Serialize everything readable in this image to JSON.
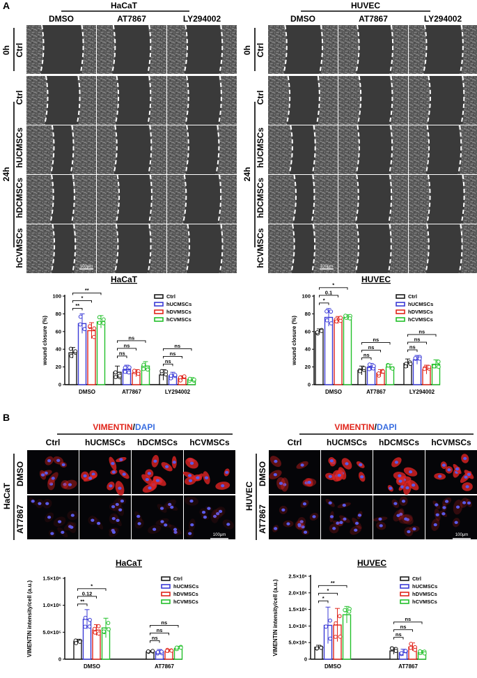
{
  "panel_labels": {
    "a": "A",
    "b": "B"
  },
  "scale_bars": {
    "wound": "100μm",
    "vim": "100μm"
  },
  "colors": {
    "Ctrl": "#1a1a1a",
    "hUCMSCs": "#3a3ad6",
    "hDVMSCs": "#e0241a",
    "hCVMSCs": "#22c02a",
    "vimentin": "#e0241a",
    "dapi": "#3a6ee0"
  },
  "section_a": {
    "left": {
      "title": "HaCaT",
      "columns": [
        "DMSO",
        "AT7867",
        "LY294002"
      ],
      "rows": [
        "Ctrl",
        "Ctrl",
        "hUCMSCs",
        "hDCMSCs",
        "hCVMSCs"
      ]
    },
    "right": {
      "title": "HUVEC",
      "columns": [
        "DMSO",
        "AT7867",
        "LY294002"
      ],
      "rows": [
        "Ctrl",
        "Ctrl",
        "hUCMSCs",
        "hDCMSCs",
        "hCVMSCs"
      ]
    },
    "time_labels": [
      "0h",
      "24h"
    ]
  },
  "section_b": {
    "stain": {
      "marker": "VIMENTIN",
      "sep": "/",
      "nuclear": "DAPI"
    },
    "columns": [
      "Ctrl",
      "hUCMSCs",
      "hDCMSCs",
      "hCVMSCs"
    ],
    "rows": [
      "DMSO",
      "AT7867"
    ],
    "cell_lines": [
      "HaCaT",
      "HUVEC"
    ]
  },
  "chart_data": [
    {
      "type": "bar",
      "title": "HaCaT",
      "ylabel": "wound closure (%)",
      "ylim": [
        0,
        100
      ],
      "yticks": [
        "0",
        "20",
        "40",
        "60",
        "80",
        "100"
      ],
      "categories": [
        "DMSO",
        "AT7867",
        "LY294002"
      ],
      "series": [
        {
          "name": "Ctrl",
          "values": [
            36,
            14,
            11
          ],
          "sd": [
            6,
            7,
            6
          ]
        },
        {
          "name": "hUCMSCs",
          "values": [
            69,
            17,
            10
          ],
          "sd": [
            11,
            5,
            4
          ]
        },
        {
          "name": "hDVMSCs",
          "values": [
            61,
            13,
            7
          ],
          "sd": [
            9,
            4,
            3
          ]
        },
        {
          "name": "hCVMSCs",
          "values": [
            71,
            21,
            6
          ],
          "sd": [
            7,
            5,
            2
          ]
        }
      ],
      "significance": [
        {
          "group": "DMSO",
          "from": 0,
          "to": 1,
          "label": "**"
        },
        {
          "group": "DMSO",
          "from": 0,
          "to": 2,
          "label": "*"
        },
        {
          "group": "DMSO",
          "from": 0,
          "to": 3,
          "label": "**"
        },
        {
          "group": "AT7867",
          "from": 0,
          "to": 1,
          "label": "ns"
        },
        {
          "group": "AT7867",
          "from": 0,
          "to": 2,
          "label": "ns"
        },
        {
          "group": "AT7867",
          "from": 0,
          "to": 3,
          "label": "ns"
        },
        {
          "group": "LY294002",
          "from": 0,
          "to": 1,
          "label": "ns"
        },
        {
          "group": "LY294002",
          "from": 0,
          "to": 2,
          "label": "ns"
        },
        {
          "group": "LY294002",
          "from": 0,
          "to": 3,
          "label": "ns"
        }
      ],
      "legend": "top-right"
    },
    {
      "type": "bar",
      "title": "HUVEC",
      "ylabel": "wound closure (%)",
      "ylim": [
        0,
        100
      ],
      "yticks": [
        "0",
        "20",
        "40",
        "60",
        "80",
        "100"
      ],
      "categories": [
        "DMSO",
        "AT7867",
        "LY294002"
      ],
      "series": [
        {
          "name": "Ctrl",
          "values": [
            60,
            16,
            24
          ],
          "sd": [
            3,
            5,
            5
          ]
        },
        {
          "name": "hUCMSCs",
          "values": [
            76,
            20,
            28
          ],
          "sd": [
            10,
            4,
            5
          ]
        },
        {
          "name": "hDVMSCs",
          "values": [
            73,
            13,
            17
          ],
          "sd": [
            4,
            4,
            5
          ]
        },
        {
          "name": "hCVMSCs",
          "values": [
            76,
            20,
            23
          ],
          "sd": [
            3,
            3,
            5
          ]
        }
      ],
      "significance": [
        {
          "group": "DMSO",
          "from": 0,
          "to": 1,
          "label": "*"
        },
        {
          "group": "DMSO",
          "from": 0,
          "to": 2,
          "label": "0.1"
        },
        {
          "group": "DMSO",
          "from": 0,
          "to": 3,
          "label": "*"
        },
        {
          "group": "AT7867",
          "from": 0,
          "to": 1,
          "label": "ns"
        },
        {
          "group": "AT7867",
          "from": 0,
          "to": 2,
          "label": "ns"
        },
        {
          "group": "AT7867",
          "from": 0,
          "to": 3,
          "label": "ns"
        },
        {
          "group": "LY294002",
          "from": 0,
          "to": 1,
          "label": "ns"
        },
        {
          "group": "LY294002",
          "from": 0,
          "to": 2,
          "label": "ns"
        },
        {
          "group": "LY294002",
          "from": 0,
          "to": 3,
          "label": "ns"
        }
      ],
      "legend": "top-right"
    },
    {
      "type": "bar",
      "title": "HaCaT",
      "ylabel": "VIMENTIN intensity/cell (a.u.)",
      "ylim": [
        0,
        1500000
      ],
      "yticks": [
        "0",
        "5.0×10⁵",
        "1.0×10⁶",
        "1.5×10⁶"
      ],
      "categories": [
        "DMSO",
        "AT7867"
      ],
      "series": [
        {
          "name": "Ctrl",
          "values": [
            330000,
            140000
          ],
          "sd": [
            40000,
            20000
          ]
        },
        {
          "name": "hUCMSCs",
          "values": [
            740000,
            140000
          ],
          "sd": [
            180000,
            40000
          ]
        },
        {
          "name": "hDVMSCs",
          "values": [
            540000,
            150000
          ],
          "sd": [
            100000,
            30000
          ]
        },
        {
          "name": "hCVMSCs",
          "values": [
            580000,
            200000
          ],
          "sd": [
            180000,
            40000
          ]
        }
      ],
      "significance": [
        {
          "group": "DMSO",
          "from": 0,
          "to": 1,
          "label": "**"
        },
        {
          "group": "DMSO",
          "from": 0,
          "to": 2,
          "label": "0.12"
        },
        {
          "group": "DMSO",
          "from": 0,
          "to": 3,
          "label": "*"
        },
        {
          "group": "AT7867",
          "from": 0,
          "to": 1,
          "label": "ns"
        },
        {
          "group": "AT7867",
          "from": 0,
          "to": 2,
          "label": "ns"
        },
        {
          "group": "AT7867",
          "from": 0,
          "to": 3,
          "label": "ns"
        }
      ],
      "legend": "top-right"
    },
    {
      "type": "bar",
      "title": "HUVEC",
      "ylabel": "VIMENTIN intensity/cell (a.u.)",
      "ylim": [
        0,
        2500000
      ],
      "yticks": [
        "0",
        "5.0×10⁵",
        "1.0×10⁶",
        "1.5×10⁶",
        "2.0×10⁶",
        "2.5×10⁶"
      ],
      "categories": [
        "DMSO",
        "AT7867"
      ],
      "series": [
        {
          "name": "Ctrl",
          "values": [
            360000,
            250000
          ],
          "sd": [
            60000,
            100000
          ]
        },
        {
          "name": "hUCMSCs",
          "values": [
            1020000,
            200000
          ],
          "sd": [
            550000,
            100000
          ]
        },
        {
          "name": "hDVMSCs",
          "values": [
            1030000,
            370000
          ],
          "sd": [
            500000,
            120000
          ]
        },
        {
          "name": "hCVMSCs",
          "values": [
            1340000,
            200000
          ],
          "sd": [
            250000,
            60000
          ]
        }
      ],
      "significance": [
        {
          "group": "DMSO",
          "from": 0,
          "to": 1,
          "label": "*"
        },
        {
          "group": "DMSO",
          "from": 0,
          "to": 2,
          "label": "*"
        },
        {
          "group": "DMSO",
          "from": 0,
          "to": 3,
          "label": "**"
        },
        {
          "group": "AT7867",
          "from": 0,
          "to": 1,
          "label": "ns"
        },
        {
          "group": "AT7867",
          "from": 0,
          "to": 2,
          "label": "ns"
        },
        {
          "group": "AT7867",
          "from": 0,
          "to": 3,
          "label": "ns"
        }
      ],
      "legend": "top-right"
    }
  ]
}
